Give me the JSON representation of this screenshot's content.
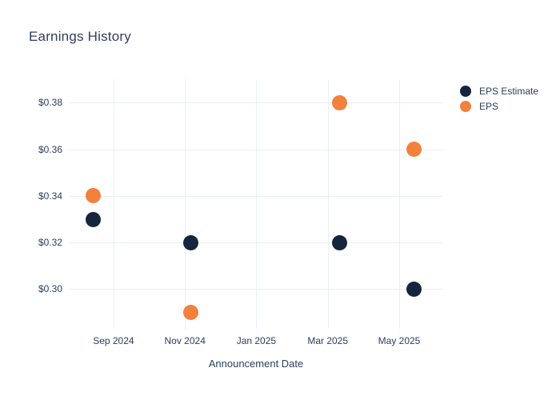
{
  "chart_data": {
    "type": "scatter",
    "title": "Earnings History",
    "xlabel": "Announcement Date",
    "ylabel": "",
    "grid": true,
    "legend_position": "right",
    "x_unit": "months since 2024-08-01",
    "xlim": [
      -0.23,
      10.21
    ],
    "ylim": [
      0.283,
      0.39
    ],
    "xticks": [
      {
        "x": 1,
        "label": "Sep 2024"
      },
      {
        "x": 3,
        "label": "Nov 2024"
      },
      {
        "x": 5,
        "label": "Jan 2025"
      },
      {
        "x": 7,
        "label": "Mar 2025"
      },
      {
        "x": 9,
        "label": "May 2025"
      }
    ],
    "yticks": [
      {
        "y": 0.3,
        "label": "$0.30"
      },
      {
        "y": 0.32,
        "label": "$0.32"
      },
      {
        "y": 0.34,
        "label": "$0.34"
      },
      {
        "y": 0.36,
        "label": "$0.36"
      },
      {
        "y": 0.38,
        "label": "$0.38"
      }
    ],
    "series": [
      {
        "name": "EPS Estimate",
        "color": "#14263e",
        "marker_size": 19,
        "points": [
          {
            "x": 0.42,
            "y": 0.33,
            "approx_date": "mid-Aug 2024"
          },
          {
            "x": 3.16,
            "y": 0.32,
            "approx_date": "early-Nov 2024"
          },
          {
            "x": 7.34,
            "y": 0.32,
            "approx_date": "mid-Mar 2025"
          },
          {
            "x": 9.42,
            "y": 0.3,
            "approx_date": "mid-May 2025"
          }
        ]
      },
      {
        "name": "EPS",
        "color": "#f2813c",
        "marker_size": 19,
        "points": [
          {
            "x": 0.42,
            "y": 0.34,
            "approx_date": "mid-Aug 2024"
          },
          {
            "x": 3.16,
            "y": 0.29,
            "approx_date": "early-Nov 2024"
          },
          {
            "x": 7.34,
            "y": 0.38,
            "approx_date": "mid-Mar 2025"
          },
          {
            "x": 9.42,
            "y": 0.36,
            "approx_date": "mid-May 2025"
          }
        ]
      }
    ],
    "colors": {
      "grid": "#e9eef7",
      "text": "#2a3f5f",
      "title_text": "#2e3f5c",
      "background": "#ffffff"
    }
  }
}
